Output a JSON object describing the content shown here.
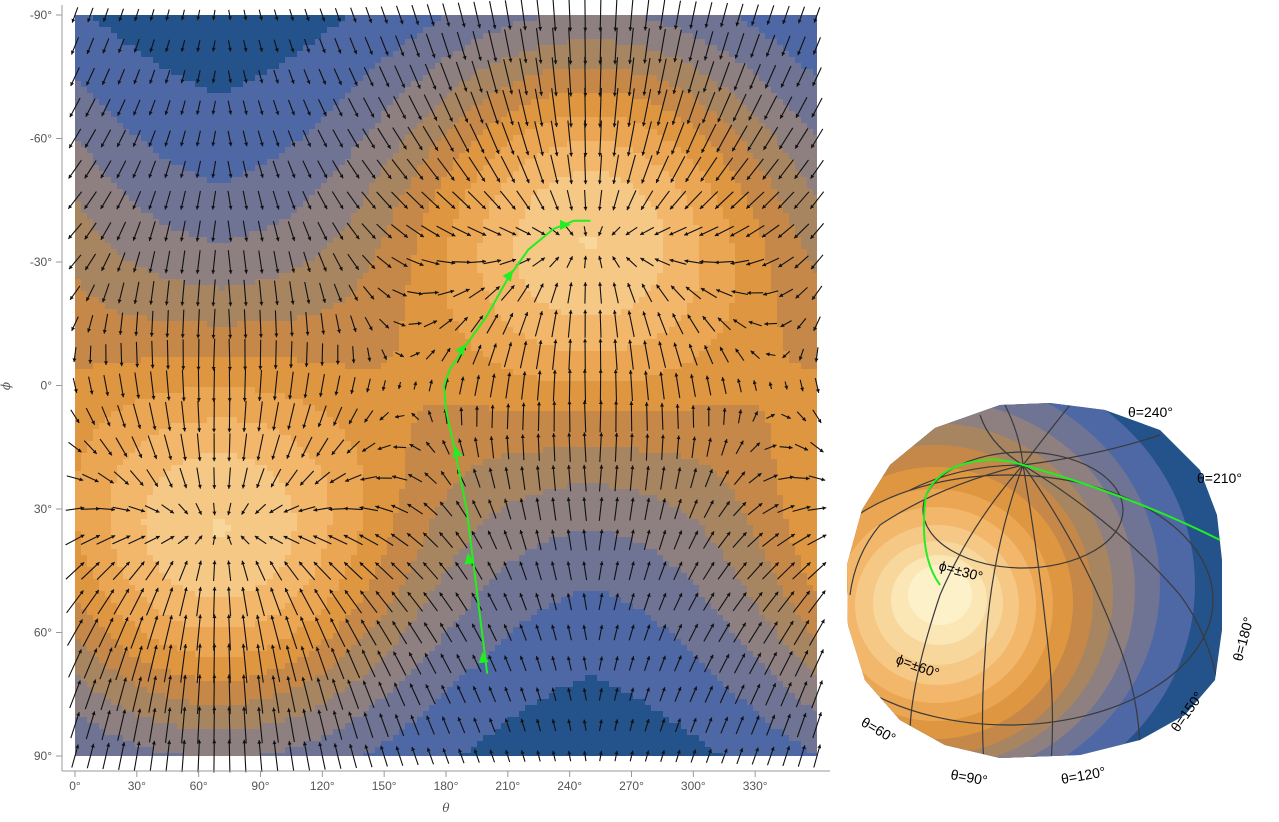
{
  "chart_data": [
    {
      "type": "contour",
      "xlabel": "θ",
      "ylabel": "ϕ",
      "xlim": [
        0,
        360
      ],
      "ylim": [
        90,
        -90
      ],
      "x_ticks": [
        "0°",
        "30°",
        "60°",
        "90°",
        "120°",
        "150°",
        "180°",
        "210°",
        "240°",
        "270°",
        "300°",
        "330°"
      ],
      "y_ticks": [
        "-90°",
        "-60°",
        "-30°",
        "0°",
        "30°",
        "60°",
        "90°"
      ],
      "field": {
        "kind": "vector+contour",
        "maxima": [
          {
            "theta": 70,
            "phi": 40
          },
          {
            "theta": 250,
            "phi": -40
          }
        ],
        "palette": [
          "#24528a",
          "#4e67a5",
          "#6f7394",
          "#8e7f80",
          "#a78560",
          "#c58848",
          "#de9740",
          "#eaa653",
          "#f2b76b",
          "#f6c886",
          "#f8d79d",
          "#fbe6b6",
          "#fdf1c9"
        ]
      },
      "trajectory": {
        "color": "#22ee22",
        "points": [
          {
            "theta": 200,
            "phi": 70
          },
          {
            "theta": 195,
            "phi": 50
          },
          {
            "theta": 190,
            "phi": 30
          },
          {
            "theta": 184,
            "phi": 15
          },
          {
            "theta": 180,
            "phi": 6
          },
          {
            "theta": 179,
            "phi": 0
          },
          {
            "theta": 182,
            "phi": -4
          },
          {
            "theta": 190,
            "phi": -10
          },
          {
            "theta": 200,
            "phi": -17
          },
          {
            "theta": 210,
            "phi": -26
          },
          {
            "theta": 220,
            "phi": -33
          },
          {
            "theta": 232,
            "phi": -38
          },
          {
            "theta": 242,
            "phi": -40
          },
          {
            "theta": 250,
            "phi": -40
          }
        ],
        "arrow_at": [
          {
            "theta": 198,
            "phi": 66
          },
          {
            "theta": 191,
            "phi": 42
          },
          {
            "theta": 185,
            "phi": 16
          },
          {
            "theta": 188,
            "phi": -9
          },
          {
            "theta": 211,
            "phi": -27
          },
          {
            "theta": 238,
            "phi": -39
          }
        ]
      }
    },
    {
      "type": "sphere",
      "labels": [
        "θ=240°",
        "θ=210°",
        "θ=180°",
        "θ=150°",
        "θ=120°",
        "θ=90°",
        "θ=60°",
        "ϕ=±30°",
        "ϕ=±60°"
      ]
    }
  ]
}
